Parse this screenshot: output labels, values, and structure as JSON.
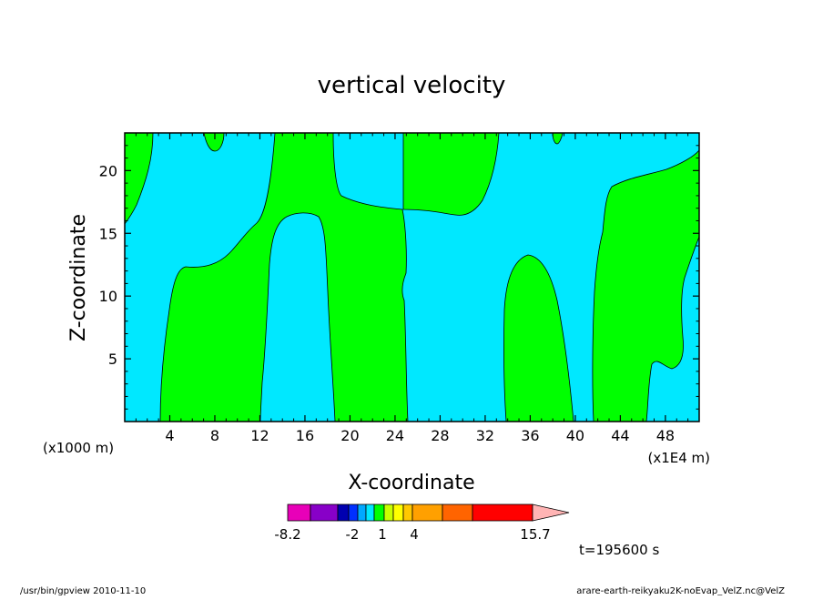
{
  "chart_data": {
    "type": "contour",
    "title": "vertical velocity",
    "xlabel": "X-coordinate",
    "ylabel": "Z-coordinate",
    "x_unit_left": "(x1000 m)",
    "x_unit_right": "(x1E4 m)",
    "x_ticks": [
      "4",
      "8",
      "12",
      "16",
      "20",
      "24",
      "28",
      "32",
      "36",
      "40",
      "44",
      "48"
    ],
    "x_tick_values": [
      4,
      8,
      12,
      16,
      20,
      24,
      28,
      32,
      36,
      40,
      44,
      48
    ],
    "y_ticks": [
      "5",
      "10",
      "15",
      "20"
    ],
    "y_tick_values": [
      5,
      10,
      15,
      20
    ],
    "xlim": [
      0,
      51
    ],
    "ylim": [
      0,
      23
    ],
    "regions": [
      {
        "color": "#00ff00",
        "level": "positive",
        "label": ""
      }
    ],
    "colorbar": {
      "tick_labels": [
        "-8.2",
        "-2",
        "1",
        "4",
        "15.7"
      ],
      "colors": [
        "#e800b8",
        "#8800c8",
        "#0000b0",
        "#0030ff",
        "#00a8ff",
        "#00e8ff",
        "#00ff00",
        "#c8ff00",
        "#ffff00",
        "#ffc800",
        "#ffa000",
        "#ff6400",
        "#ff0000",
        "#ff7878",
        "#ffb4b4"
      ]
    },
    "time_label": "t=195600  s"
  },
  "footer": {
    "left": "/usr/bin/gpview   2010-11-10",
    "right": "arare-earth-reikyaku2K-noEvap_VelZ.nc@VelZ"
  }
}
